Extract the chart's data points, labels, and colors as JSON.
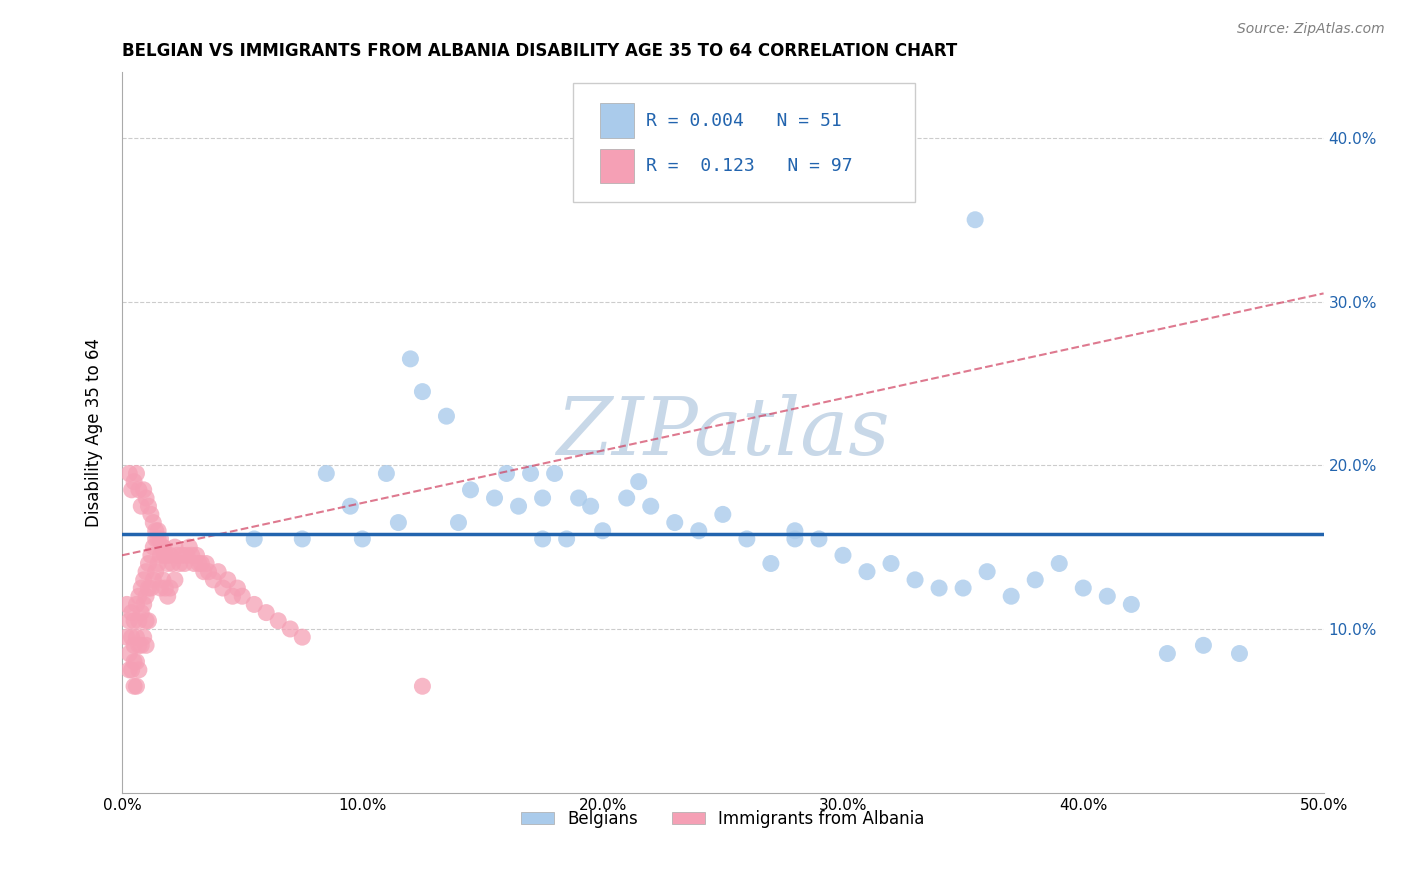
{
  "title": "BELGIAN VS IMMIGRANTS FROM ALBANIA DISABILITY AGE 35 TO 64 CORRELATION CHART",
  "source": "Source: ZipAtlas.com",
  "ylabel": "Disability Age 35 to 64",
  "xlim": [
    0.0,
    0.5
  ],
  "ylim": [
    0.0,
    0.44
  ],
  "xticks": [
    0.0,
    0.1,
    0.2,
    0.3,
    0.4,
    0.5
  ],
  "xticklabels": [
    "0.0%",
    "10.0%",
    "20.0%",
    "30.0%",
    "40.0%",
    "50.0%"
  ],
  "yticks": [
    0.1,
    0.2,
    0.3,
    0.4
  ],
  "yticklabels": [
    "10.0%",
    "20.0%",
    "30.0%",
    "40.0%"
  ],
  "legend_r_belgian": "0.004",
  "legend_n_belgian": "51",
  "legend_r_albania": "0.123",
  "legend_n_albania": "97",
  "belgian_color": "#aacbeb",
  "albania_color": "#f5a0b5",
  "belgian_line_color": "#2264ae",
  "albania_line_color": "#d04060",
  "grid_color": "#cccccc",
  "watermark_color": "#c8d8e8",
  "belgian_line_y": 0.158,
  "albania_line_x0": 0.0,
  "albania_line_y0": 0.145,
  "albania_line_x1": 0.5,
  "albania_line_y1": 0.305,
  "belgian_x": [
    0.055,
    0.075,
    0.085,
    0.095,
    0.1,
    0.11,
    0.115,
    0.12,
    0.125,
    0.135,
    0.14,
    0.145,
    0.155,
    0.16,
    0.165,
    0.17,
    0.175,
    0.18,
    0.19,
    0.195,
    0.2,
    0.21,
    0.215,
    0.22,
    0.23,
    0.24,
    0.25,
    0.26,
    0.27,
    0.28,
    0.29,
    0.3,
    0.31,
    0.32,
    0.33,
    0.34,
    0.35,
    0.36,
    0.37,
    0.38,
    0.39,
    0.4,
    0.41,
    0.42,
    0.435,
    0.45,
    0.465,
    0.175,
    0.185,
    0.28,
    0.355
  ],
  "belgian_y": [
    0.155,
    0.155,
    0.195,
    0.175,
    0.155,
    0.195,
    0.165,
    0.265,
    0.245,
    0.23,
    0.165,
    0.185,
    0.18,
    0.195,
    0.175,
    0.195,
    0.18,
    0.195,
    0.18,
    0.175,
    0.16,
    0.18,
    0.19,
    0.175,
    0.165,
    0.16,
    0.17,
    0.155,
    0.14,
    0.155,
    0.155,
    0.145,
    0.135,
    0.14,
    0.13,
    0.125,
    0.125,
    0.135,
    0.12,
    0.13,
    0.14,
    0.125,
    0.12,
    0.115,
    0.085,
    0.09,
    0.085,
    0.155,
    0.155,
    0.16,
    0.35
  ],
  "albania_x": [
    0.002,
    0.002,
    0.003,
    0.003,
    0.003,
    0.004,
    0.004,
    0.004,
    0.005,
    0.005,
    0.005,
    0.005,
    0.006,
    0.006,
    0.006,
    0.006,
    0.007,
    0.007,
    0.007,
    0.007,
    0.008,
    0.008,
    0.008,
    0.009,
    0.009,
    0.009,
    0.01,
    0.01,
    0.01,
    0.01,
    0.011,
    0.011,
    0.011,
    0.012,
    0.012,
    0.013,
    0.013,
    0.014,
    0.014,
    0.015,
    0.015,
    0.016,
    0.016,
    0.017,
    0.017,
    0.018,
    0.018,
    0.019,
    0.019,
    0.02,
    0.02,
    0.021,
    0.022,
    0.022,
    0.023,
    0.024,
    0.025,
    0.026,
    0.027,
    0.028,
    0.029,
    0.03,
    0.031,
    0.032,
    0.033,
    0.034,
    0.035,
    0.036,
    0.038,
    0.04,
    0.042,
    0.044,
    0.046,
    0.048,
    0.05,
    0.055,
    0.06,
    0.065,
    0.07,
    0.075,
    0.003,
    0.004,
    0.005,
    0.006,
    0.007,
    0.008,
    0.009,
    0.01,
    0.011,
    0.012,
    0.013,
    0.014,
    0.015,
    0.016,
    0.017,
    0.018,
    0.125
  ],
  "albania_y": [
    0.115,
    0.095,
    0.105,
    0.085,
    0.075,
    0.11,
    0.095,
    0.075,
    0.105,
    0.09,
    0.08,
    0.065,
    0.115,
    0.095,
    0.08,
    0.065,
    0.12,
    0.105,
    0.09,
    0.075,
    0.125,
    0.11,
    0.09,
    0.13,
    0.115,
    0.095,
    0.135,
    0.12,
    0.105,
    0.09,
    0.14,
    0.125,
    0.105,
    0.145,
    0.125,
    0.15,
    0.13,
    0.155,
    0.135,
    0.16,
    0.14,
    0.145,
    0.125,
    0.15,
    0.13,
    0.145,
    0.125,
    0.14,
    0.12,
    0.145,
    0.125,
    0.14,
    0.15,
    0.13,
    0.145,
    0.14,
    0.145,
    0.14,
    0.145,
    0.15,
    0.145,
    0.14,
    0.145,
    0.14,
    0.14,
    0.135,
    0.14,
    0.135,
    0.13,
    0.135,
    0.125,
    0.13,
    0.12,
    0.125,
    0.12,
    0.115,
    0.11,
    0.105,
    0.1,
    0.095,
    0.195,
    0.185,
    0.19,
    0.195,
    0.185,
    0.175,
    0.185,
    0.18,
    0.175,
    0.17,
    0.165,
    0.16,
    0.155,
    0.155,
    0.15,
    0.145,
    0.065
  ]
}
